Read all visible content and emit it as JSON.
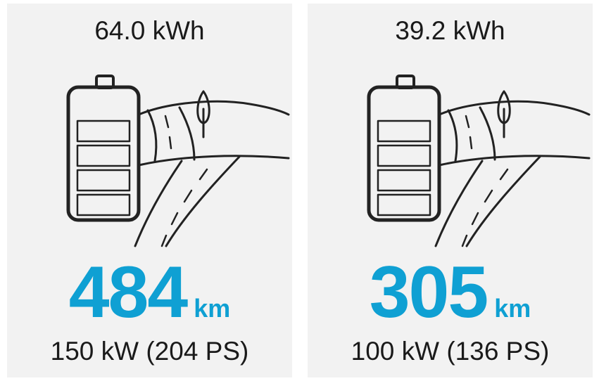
{
  "cards": [
    {
      "capacity": "64.0 kWh",
      "range": 484,
      "range_unit": "km",
      "power": "150 kW (204 PS)"
    },
    {
      "capacity": "39.2 kWh",
      "range": 305,
      "range_unit": "km",
      "power": "100 kW (136 PS)"
    }
  ]
}
